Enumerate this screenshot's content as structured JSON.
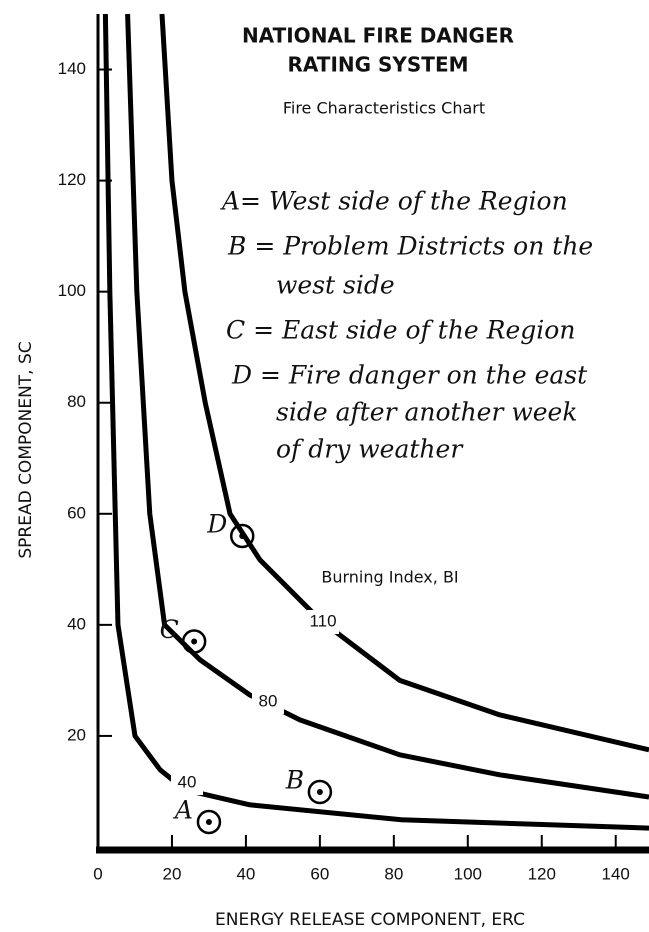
{
  "chart_data": {
    "type": "line",
    "title": [
      "NATIONAL FIRE DANGER",
      "RATING SYSTEM"
    ],
    "subtitle": "Fire Characteristics Chart",
    "annotation": "Burning Index, BI",
    "xlabel": "ENERGY RELEASE COMPONENT, ERC",
    "ylabel": "SPREAD COMPONENT, SC",
    "xlim": [
      0,
      149
    ],
    "ylim": [
      0,
      150
    ],
    "xticks": [
      0,
      20,
      40,
      60,
      80,
      100,
      120,
      140
    ],
    "yticks": [
      20,
      40,
      60,
      80,
      100,
      120,
      140
    ],
    "series": [
      {
        "name": "40",
        "color": "#000000",
        "x": [
          2,
          3.2,
          5.4,
          10,
          16.8,
          23.5,
          41,
          82,
          149
        ],
        "values": [
          150,
          100,
          40,
          20,
          13.9,
          10.3,
          7.6,
          4.9,
          3.4
        ]
      },
      {
        "name": "80",
        "color": "#000000",
        "x": [
          8,
          10.5,
          14,
          18,
          27.6,
          41,
          54.6,
          81.6,
          108.6,
          149
        ],
        "values": [
          150,
          100,
          60,
          40,
          33.7,
          27.4,
          22.9,
          16.6,
          13,
          9
        ]
      },
      {
        "name": "110",
        "color": "#000000",
        "x": [
          17.3,
          20,
          23.5,
          29,
          35.7,
          43.8,
          54.6,
          60,
          81.6,
          108.6,
          149
        ],
        "values": [
          150,
          120,
          100,
          80,
          60,
          51.7,
          44.5,
          40.9,
          30,
          23.8,
          17.5
        ]
      }
    ],
    "points": [
      {
        "label": "A",
        "x": 30,
        "y": 4.5
      },
      {
        "label": "B",
        "x": 60,
        "y": 9.9
      },
      {
        "label": "C",
        "x": 26,
        "y": 37
      },
      {
        "label": "D",
        "x": 39,
        "y": 56
      }
    ],
    "notes": [
      "A= West side of the Region",
      "B = Problem Districts on the",
      "west side",
      "C = East side of the Region",
      "D = Fire danger on the east",
      "side after another week",
      "of dry weather"
    ]
  }
}
